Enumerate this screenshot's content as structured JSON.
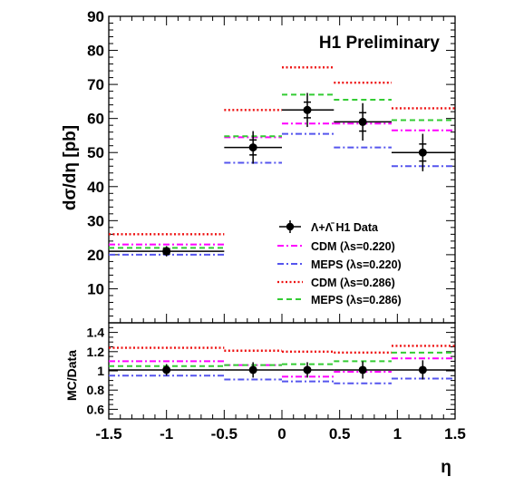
{
  "chart_data": [
    {
      "type": "line",
      "panel": "main",
      "title": "H1 Preliminary",
      "xlabel": "η",
      "ylabel": "dσ/dη [pb]",
      "xlim": [
        -1.5,
        1.5
      ],
      "ylim": [
        0,
        90
      ],
      "grid": false,
      "legend_position": "lower-right",
      "bin_edges": [
        -1.5,
        -0.5,
        0.0,
        0.45,
        0.95,
        1.5
      ],
      "x_ticks": [
        "-1.5",
        "-1",
        "-0.5",
        "0",
        "0.5",
        "1",
        "1.5"
      ],
      "y_ticks": [
        "10",
        "20",
        "30",
        "40",
        "50",
        "60",
        "70",
        "80",
        "90"
      ],
      "data": {
        "name": "Λ+Λ̄ H1 Data",
        "x": [
          -1.0,
          -0.25,
          0.22,
          0.7,
          1.22
        ],
        "y": [
          21.0,
          51.5,
          62.5,
          59.0,
          50.0
        ],
        "err_inner": [
          0.8,
          2.2,
          2.3,
          2.7,
          2.5
        ],
        "err_total": [
          1.5,
          4.8,
          5.0,
          5.5,
          5.5
        ],
        "color": "#000000"
      },
      "series": [
        {
          "name": "CDM (λs=0.220)",
          "values": [
            23.0,
            54.5,
            58.5,
            58.5,
            56.5
          ],
          "color": "#ff00ff",
          "dash": "dashdot"
        },
        {
          "name": "MEPS (λs=0.220)",
          "values": [
            20.0,
            47.0,
            55.5,
            51.5,
            46.0
          ],
          "color": "#5555ee",
          "dash": "dashdot"
        },
        {
          "name": "CDM (λs=0.286)",
          "values": [
            26.0,
            62.5,
            75.0,
            70.5,
            63.0
          ],
          "color": "#ee1111",
          "dash": "dot"
        },
        {
          "name": "MEPS (λs=0.286)",
          "values": [
            22.0,
            54.8,
            67.0,
            65.5,
            59.5
          ],
          "color": "#33cc33",
          "dash": "dash"
        }
      ]
    },
    {
      "type": "line",
      "panel": "ratio",
      "xlabel": "η",
      "ylabel": "MC/Data",
      "xlim": [
        -1.5,
        1.5
      ],
      "ylim": [
        0.5,
        1.5
      ],
      "y_ticks": [
        "0.6",
        "0.8",
        "1",
        "1.2",
        "1.4"
      ],
      "bin_edges": [
        -1.5,
        -0.5,
        0.0,
        0.45,
        0.95,
        1.5
      ],
      "data": {
        "x": [
          -1.0,
          -0.25,
          0.22,
          0.7,
          1.22
        ],
        "y": [
          1.01,
          1.01,
          1.01,
          1.01,
          1.01
        ],
        "err_total": [
          0.06,
          0.08,
          0.08,
          0.09,
          0.1
        ]
      },
      "series": [
        {
          "name": "CDM (λs=0.220)",
          "values": [
            1.1,
            1.06,
            0.94,
            0.99,
            1.13
          ],
          "color": "#ff00ff",
          "dash": "dashdot"
        },
        {
          "name": "MEPS (λs=0.220)",
          "values": [
            0.95,
            0.91,
            0.89,
            0.87,
            0.92
          ],
          "color": "#5555ee",
          "dash": "dashdot"
        },
        {
          "name": "CDM (λs=0.286)",
          "values": [
            1.24,
            1.21,
            1.2,
            1.19,
            1.26
          ],
          "color": "#ee1111",
          "dash": "dot"
        },
        {
          "name": "MEPS (λs=0.286)",
          "values": [
            1.05,
            1.06,
            1.07,
            1.1,
            1.19
          ],
          "color": "#33cc33",
          "dash": "dash"
        }
      ]
    }
  ],
  "labels": {
    "title": "H1 Preliminary",
    "ylabel_main": "dσ/dη [pb]",
    "ylabel_ratio": "MC/Data",
    "xlabel": "η"
  }
}
